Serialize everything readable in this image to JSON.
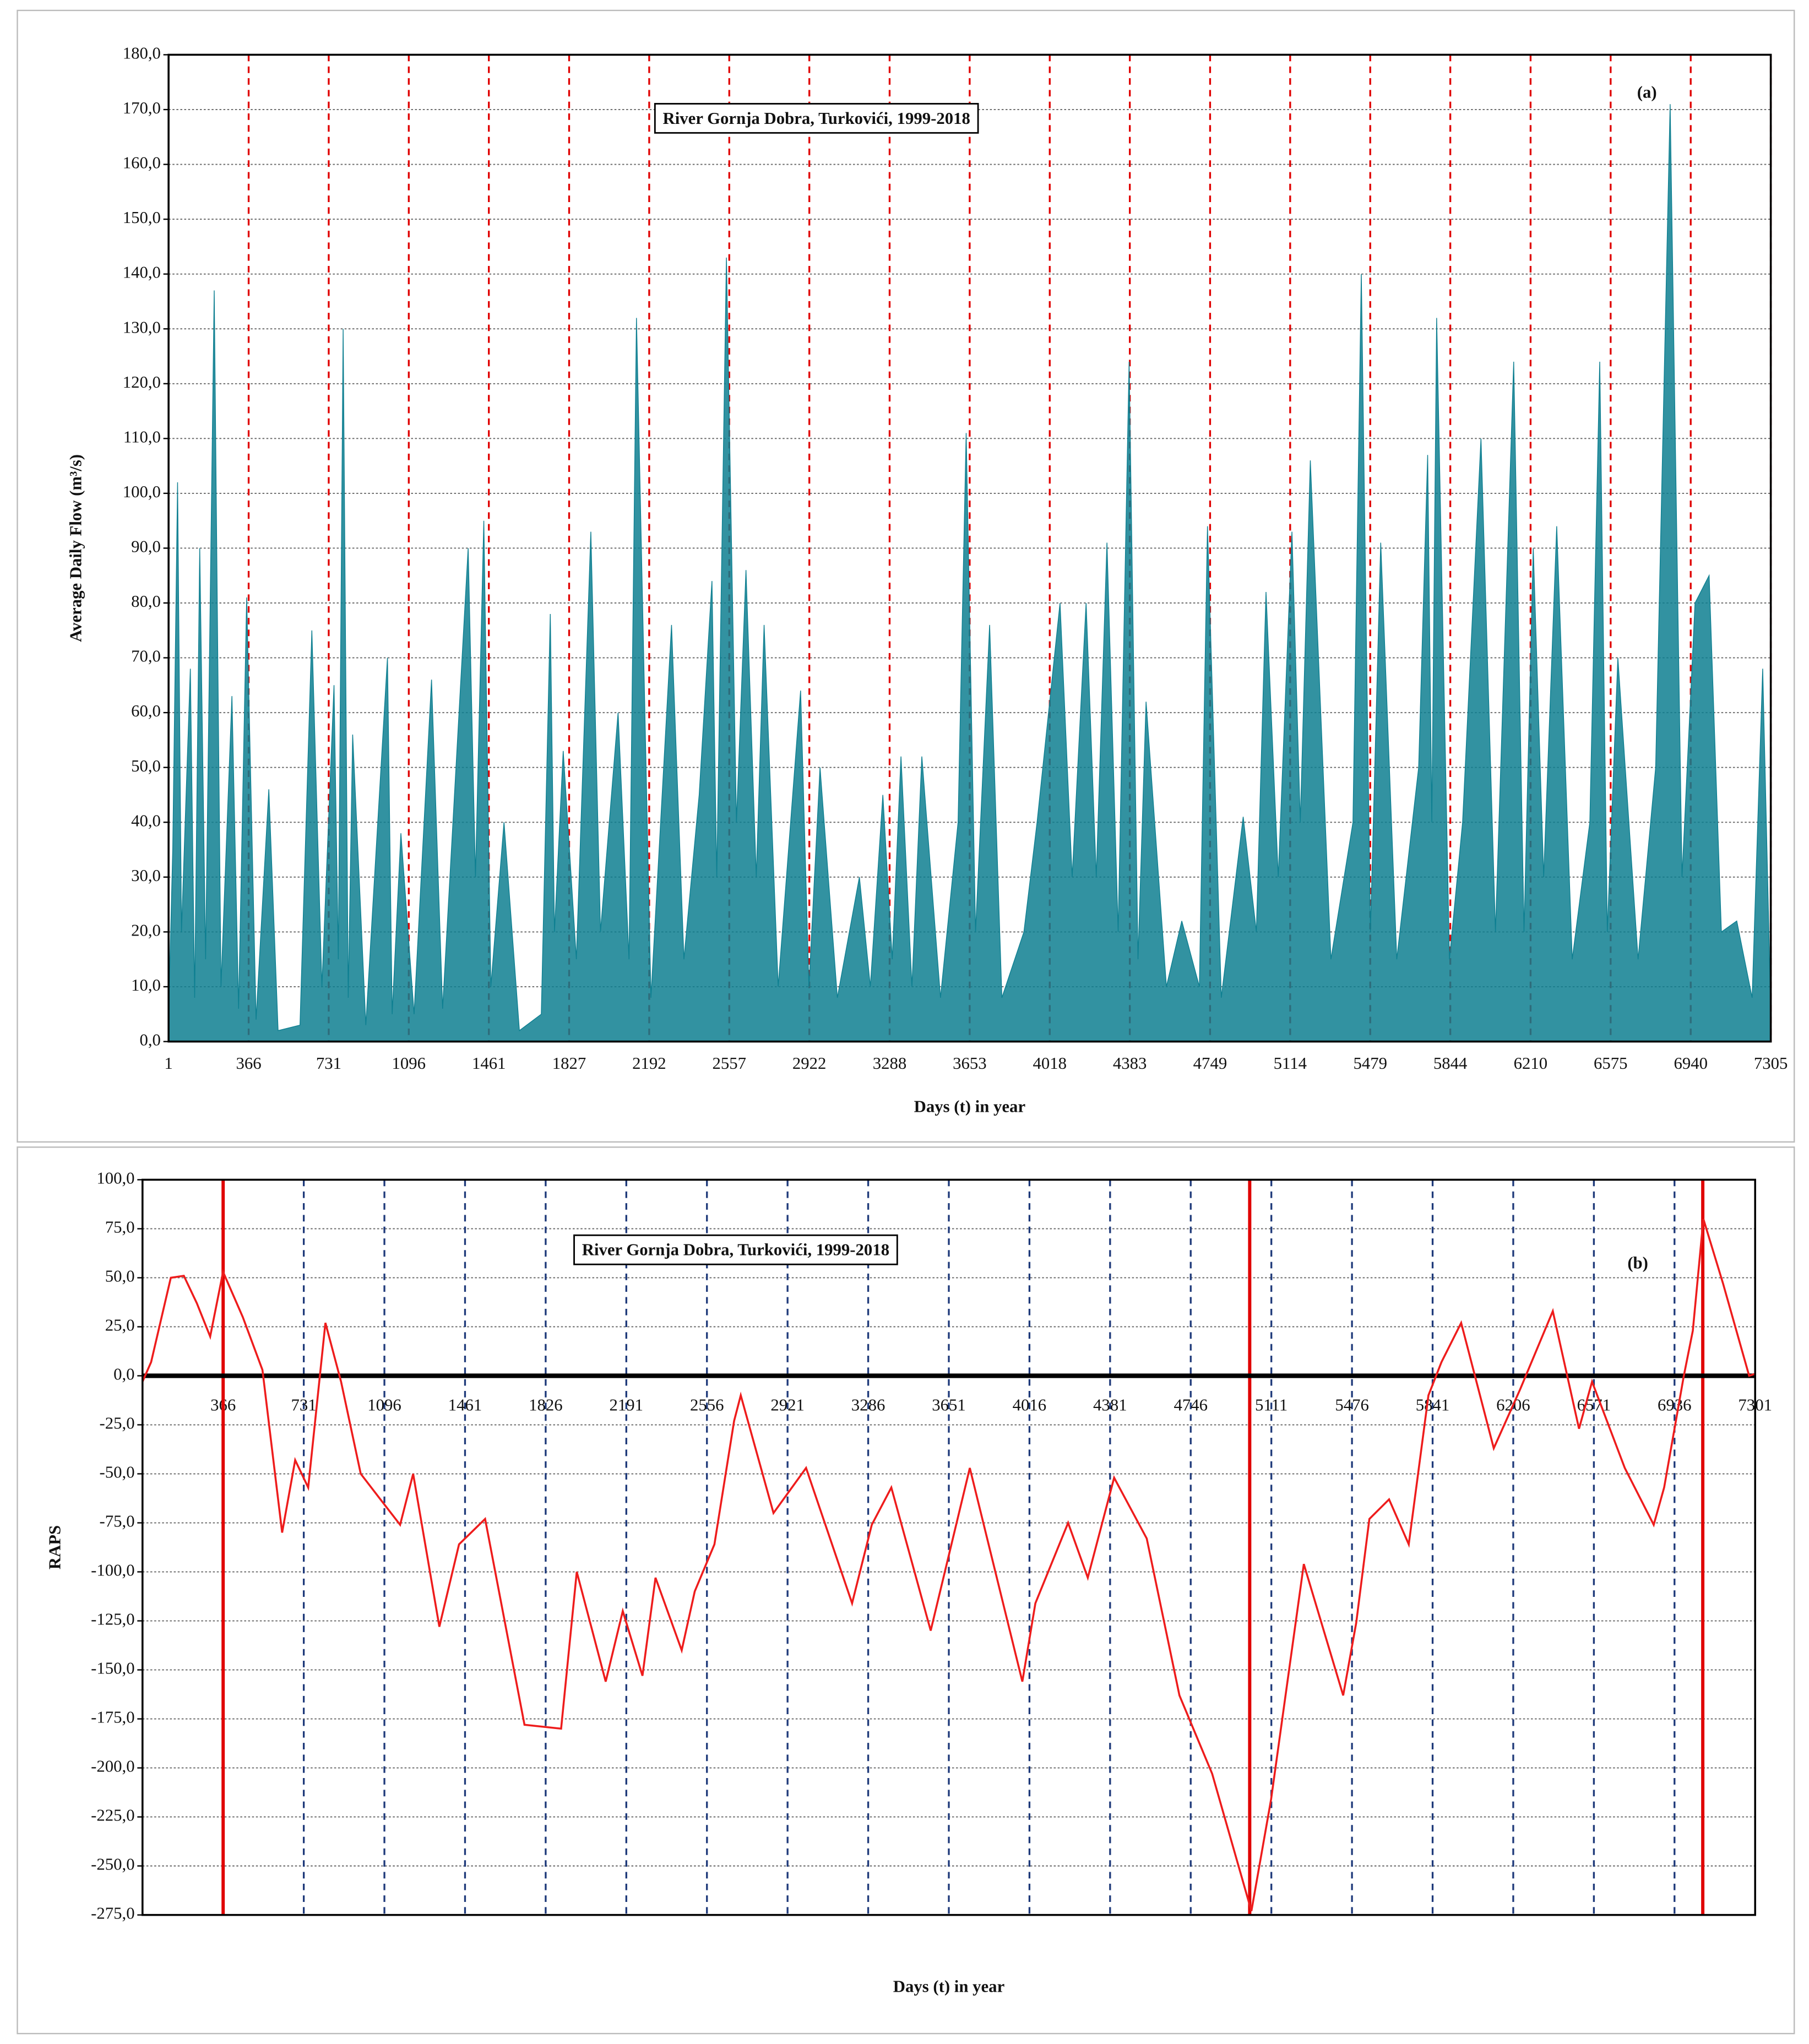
{
  "chart_data": [
    {
      "type": "area",
      "title": "River Gornja Dobra, Turkovići, 1999-2018",
      "panel_label": "(a)",
      "x_label": "Days (t) in year",
      "y_label": "Average Daily Flow (m³/s)",
      "color": "#0e7f91",
      "vgrid_color": "#e00000",
      "x": [
        1,
        20,
        42,
        60,
        100,
        120,
        143,
        170,
        209,
        240,
        290,
        320,
        357,
        400,
        458,
        500,
        600,
        654,
        700,
        755,
        775,
        797,
        820,
        840,
        900,
        999,
        1020,
        1060,
        1120,
        1200,
        1250,
        1367,
        1400,
        1438,
        1470,
        1530,
        1600,
        1700,
        1741,
        1760,
        1800,
        1860,
        1926,
        1970,
        2050,
        2100,
        2134,
        2200,
        2294,
        2350,
        2420,
        2478,
        2500,
        2544,
        2590,
        2633,
        2680,
        2716,
        2780,
        2882,
        2920,
        2971,
        3050,
        3150,
        3200,
        3257,
        3300,
        3340,
        3390,
        3435,
        3520,
        3600,
        3637,
        3680,
        3744,
        3800,
        3900,
        3960,
        4065,
        4120,
        4184,
        4230,
        4279,
        4330,
        4380,
        4420,
        4457,
        4550,
        4620,
        4700,
        4737,
        4800,
        4900,
        4960,
        5004,
        5060,
        5122,
        5160,
        5206,
        5300,
        5400,
        5438,
        5480,
        5527,
        5600,
        5700,
        5741,
        5760,
        5782,
        5840,
        5900,
        5984,
        6050,
        6133,
        6180,
        6222,
        6270,
        6329,
        6400,
        6480,
        6525,
        6560,
        6608,
        6700,
        6780,
        6846,
        6900,
        6960,
        7024,
        7080,
        7150,
        7220,
        7268,
        7305
      ],
      "values": [
        5,
        35,
        102,
        20,
        68,
        8,
        90,
        15,
        137,
        10,
        63,
        6,
        81,
        4,
        46,
        2,
        3,
        75,
        10,
        65,
        15,
        130,
        8,
        56,
        3,
        70,
        5,
        38,
        5,
        66,
        6,
        90,
        30,
        95,
        10,
        40,
        2,
        5,
        78,
        20,
        53,
        15,
        93,
        20,
        60,
        15,
        132,
        8,
        76,
        15,
        45,
        84,
        30,
        143,
        40,
        86,
        30,
        76,
        10,
        64,
        10,
        50,
        8,
        30,
        10,
        45,
        15,
        52,
        10,
        52,
        8,
        40,
        111,
        20,
        76,
        8,
        20,
        40,
        80,
        30,
        80,
        30,
        91,
        20,
        124,
        15,
        62,
        10,
        22,
        10,
        94,
        8,
        41,
        20,
        82,
        30,
        93,
        40,
        106,
        15,
        40,
        140,
        20,
        91,
        15,
        50,
        107,
        40,
        132,
        15,
        40,
        110,
        20,
        124,
        20,
        90,
        30,
        94,
        15,
        40,
        124,
        20,
        70,
        15,
        50,
        171,
        30,
        80,
        85,
        20,
        22,
        8,
        68,
        5
      ],
      "xlim": [
        1,
        7305
      ],
      "ylim": [
        0,
        180
      ],
      "xticks": [
        1,
        366,
        731,
        1096,
        1461,
        1827,
        2192,
        2557,
        2922,
        3288,
        3653,
        4018,
        4383,
        4749,
        5114,
        5479,
        5844,
        6210,
        6575,
        6940,
        7305
      ],
      "yticks": [
        {
          "value": 0,
          "label": "0,0"
        },
        {
          "value": 10,
          "label": "10,0"
        },
        {
          "value": 20,
          "label": "20,0"
        },
        {
          "value": 30,
          "label": "30,0"
        },
        {
          "value": 40,
          "label": "40,0"
        },
        {
          "value": 50,
          "label": "50,0"
        },
        {
          "value": 60,
          "label": "60,0"
        },
        {
          "value": 70,
          "label": "70,0"
        },
        {
          "value": 80,
          "label": "80,0"
        },
        {
          "value": 90,
          "label": "90,0"
        },
        {
          "value": 100,
          "label": "100,0"
        },
        {
          "value": 110,
          "label": "110,0"
        },
        {
          "value": 120,
          "label": "120,0"
        },
        {
          "value": 130,
          "label": "130,0"
        },
        {
          "value": 140,
          "label": "140,0"
        },
        {
          "value": 150,
          "label": "150,0"
        },
        {
          "value": 160,
          "label": "160,0"
        },
        {
          "value": 170,
          "label": "170,0"
        },
        {
          "value": 180,
          "label": "180,0"
        }
      ],
      "grid": true
    },
    {
      "type": "line",
      "title": "River Gornja Dobra, Turkovići, 1999-2018",
      "panel_label": "(b)",
      "x_label": "Days (t) in year",
      "y_label": "RAPS",
      "color": "#ee1c1c",
      "vgrid_color": "#1f3a7a",
      "zero_line": true,
      "change_points": [
        366,
        5013,
        7064
      ],
      "x": [
        1,
        40,
        129,
        188,
        247,
        307,
        366,
        455,
        544,
        633,
        692,
        751,
        829,
        900,
        989,
        1078,
        1167,
        1226,
        1345,
        1434,
        1552,
        1730,
        1896,
        1967,
        2098,
        2175,
        2264,
        2323,
        2442,
        2501,
        2590,
        2679,
        2709,
        2857,
        3005,
        3213,
        3302,
        3391,
        3569,
        3746,
        3984,
        4043,
        4191,
        4280,
        4399,
        4547,
        4695,
        4843,
        5021,
        5110,
        5258,
        5436,
        5495,
        5555,
        5644,
        5733,
        5822,
        5881,
        5970,
        6118,
        6237,
        6385,
        6504,
        6563,
        6711,
        6842,
        6889,
        6978,
        7019,
        7067,
        7156,
        7274,
        7301
      ],
      "values": [
        -3,
        7,
        50,
        51,
        37,
        20,
        53,
        30,
        3,
        -80,
        -43,
        -57,
        27,
        -3,
        -50,
        -63,
        -76,
        -50,
        -128,
        -86,
        -73,
        -178,
        -180,
        -100,
        -156,
        -120,
        -153,
        -103,
        -140,
        -110,
        -86,
        -23,
        -10,
        -70,
        -47,
        -116,
        -76,
        -57,
        -130,
        -47,
        -156,
        -116,
        -75,
        -103,
        -52,
        -83,
        -163,
        -203,
        -273,
        -216,
        -96,
        -163,
        -126,
        -73,
        -63,
        -86,
        -10,
        7,
        27,
        -37,
        -7,
        33,
        -27,
        -3,
        -47,
        -76,
        -57,
        0,
        23,
        80,
        47,
        0,
        1
      ],
      "xlim": [
        1,
        7301
      ],
      "ylim": [
        -275,
        100
      ],
      "xticks": [
        366,
        731,
        1096,
        1461,
        1826,
        2191,
        2556,
        2921,
        3286,
        3651,
        4016,
        4381,
        4746,
        5111,
        5476,
        5841,
        6206,
        6571,
        6936,
        7301
      ],
      "yticks": [
        {
          "value": 100,
          "label": "100,0"
        },
        {
          "value": 75,
          "label": "75,0"
        },
        {
          "value": 50,
          "label": "50,0"
        },
        {
          "value": 25,
          "label": "25,0"
        },
        {
          "value": 0,
          "label": "0,0"
        },
        {
          "value": -25,
          "label": "-25,0"
        },
        {
          "value": -50,
          "label": "-50,0"
        },
        {
          "value": -75,
          "label": "-75,0"
        },
        {
          "value": -100,
          "label": "-100,0"
        },
        {
          "value": -125,
          "label": "-125,0"
        },
        {
          "value": -150,
          "label": "-150,0"
        },
        {
          "value": -175,
          "label": "-175,0"
        },
        {
          "value": -200,
          "label": "-200,0"
        },
        {
          "value": -225,
          "label": "-225,0"
        },
        {
          "value": -250,
          "label": "-250,0"
        },
        {
          "value": -275,
          "label": "-275,0"
        }
      ],
      "grid": true
    }
  ]
}
